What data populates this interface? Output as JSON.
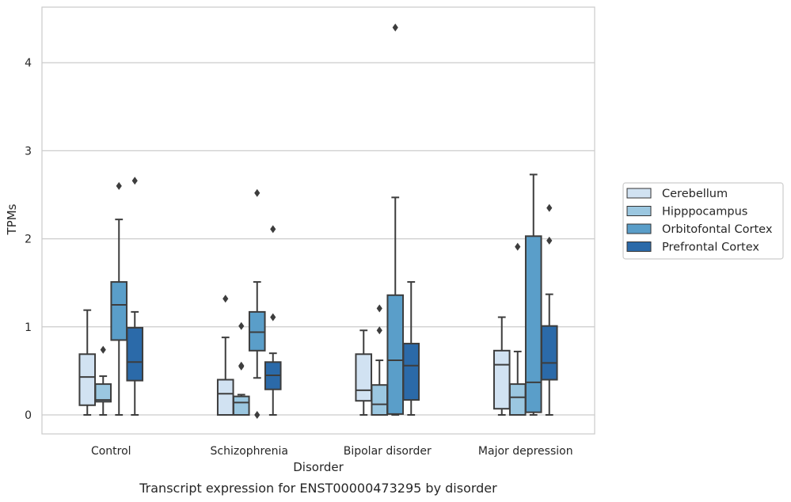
{
  "caption": "Transcript expression for ENST00000473295 by disorder",
  "chart_data": {
    "type": "box",
    "xlabel": "Disorder",
    "ylabel": "TPMs",
    "ylim": [
      -0.2,
      4.65
    ],
    "yticks": [
      0,
      1,
      2,
      3,
      4
    ],
    "grid": "horizontal",
    "legend_position": "right",
    "categories": [
      "Control",
      "Schizophrenia",
      "Bipolar disorder",
      "Major depression"
    ],
    "series": [
      {
        "name": "Cerebellum",
        "color": "#d1e2f2",
        "boxes": [
          {
            "whislo": 0.0,
            "q1": 0.11,
            "med": 0.43,
            "q3": 0.69,
            "whishi": 1.19,
            "fliers": []
          },
          {
            "whislo": 0.0,
            "q1": 0.0,
            "med": 0.24,
            "q3": 0.4,
            "whishi": 0.88,
            "fliers": [
              1.32
            ]
          },
          {
            "whislo": 0.0,
            "q1": 0.16,
            "med": 0.28,
            "q3": 0.69,
            "whishi": 0.96,
            "fliers": []
          },
          {
            "whislo": 0.0,
            "q1": 0.07,
            "med": 0.57,
            "q3": 0.73,
            "whishi": 1.11,
            "fliers": []
          }
        ]
      },
      {
        "name": "Hipppocampus",
        "color": "#9bc7e0",
        "boxes": [
          {
            "whislo": 0.0,
            "q1": 0.15,
            "med": 0.17,
            "q3": 0.35,
            "whishi": 0.44,
            "fliers": [
              0.74
            ]
          },
          {
            "whislo": 0.0,
            "q1": 0.0,
            "med": 0.14,
            "q3": 0.21,
            "whishi": 0.23,
            "fliers": [
              0.55,
              0.56,
              1.01
            ]
          },
          {
            "whislo": 0.0,
            "q1": 0.0,
            "med": 0.12,
            "q3": 0.34,
            "whishi": 0.62,
            "fliers": [
              0.96,
              1.21
            ]
          },
          {
            "whislo": 0.0,
            "q1": 0.0,
            "med": 0.2,
            "q3": 0.35,
            "whishi": 0.72,
            "fliers": [
              1.91
            ]
          }
        ]
      },
      {
        "name": "Orbitofontal Cortex",
        "color": "#5a9ec9",
        "boxes": [
          {
            "whislo": 0.0,
            "q1": 0.85,
            "med": 1.25,
            "q3": 1.51,
            "whishi": 2.22,
            "fliers": [
              2.6
            ]
          },
          {
            "whislo": 0.42,
            "q1": 0.73,
            "med": 0.94,
            "q3": 1.17,
            "whishi": 1.51,
            "fliers": [
              0.0,
              2.52
            ]
          },
          {
            "whislo": 0.0,
            "q1": 0.01,
            "med": 0.62,
            "q3": 1.36,
            "whishi": 2.47,
            "fliers": [
              4.4
            ]
          },
          {
            "whislo": 0.0,
            "q1": 0.03,
            "med": 0.37,
            "q3": 2.03,
            "whishi": 2.73,
            "fliers": []
          }
        ]
      },
      {
        "name": "Prefrontal Cortex",
        "color": "#2b6aa9",
        "boxes": [
          {
            "whislo": 0.0,
            "q1": 0.39,
            "med": 0.6,
            "q3": 0.99,
            "whishi": 1.17,
            "fliers": [
              2.66
            ]
          },
          {
            "whislo": 0.0,
            "q1": 0.29,
            "med": 0.45,
            "q3": 0.6,
            "whishi": 0.7,
            "fliers": [
              1.11,
              2.11
            ]
          },
          {
            "whislo": 0.0,
            "q1": 0.17,
            "med": 0.56,
            "q3": 0.81,
            "whishi": 1.51,
            "fliers": []
          },
          {
            "whislo": 0.0,
            "q1": 0.4,
            "med": 0.59,
            "q3": 1.01,
            "whishi": 1.37,
            "fliers": [
              1.98,
              2.35
            ]
          }
        ]
      }
    ]
  }
}
